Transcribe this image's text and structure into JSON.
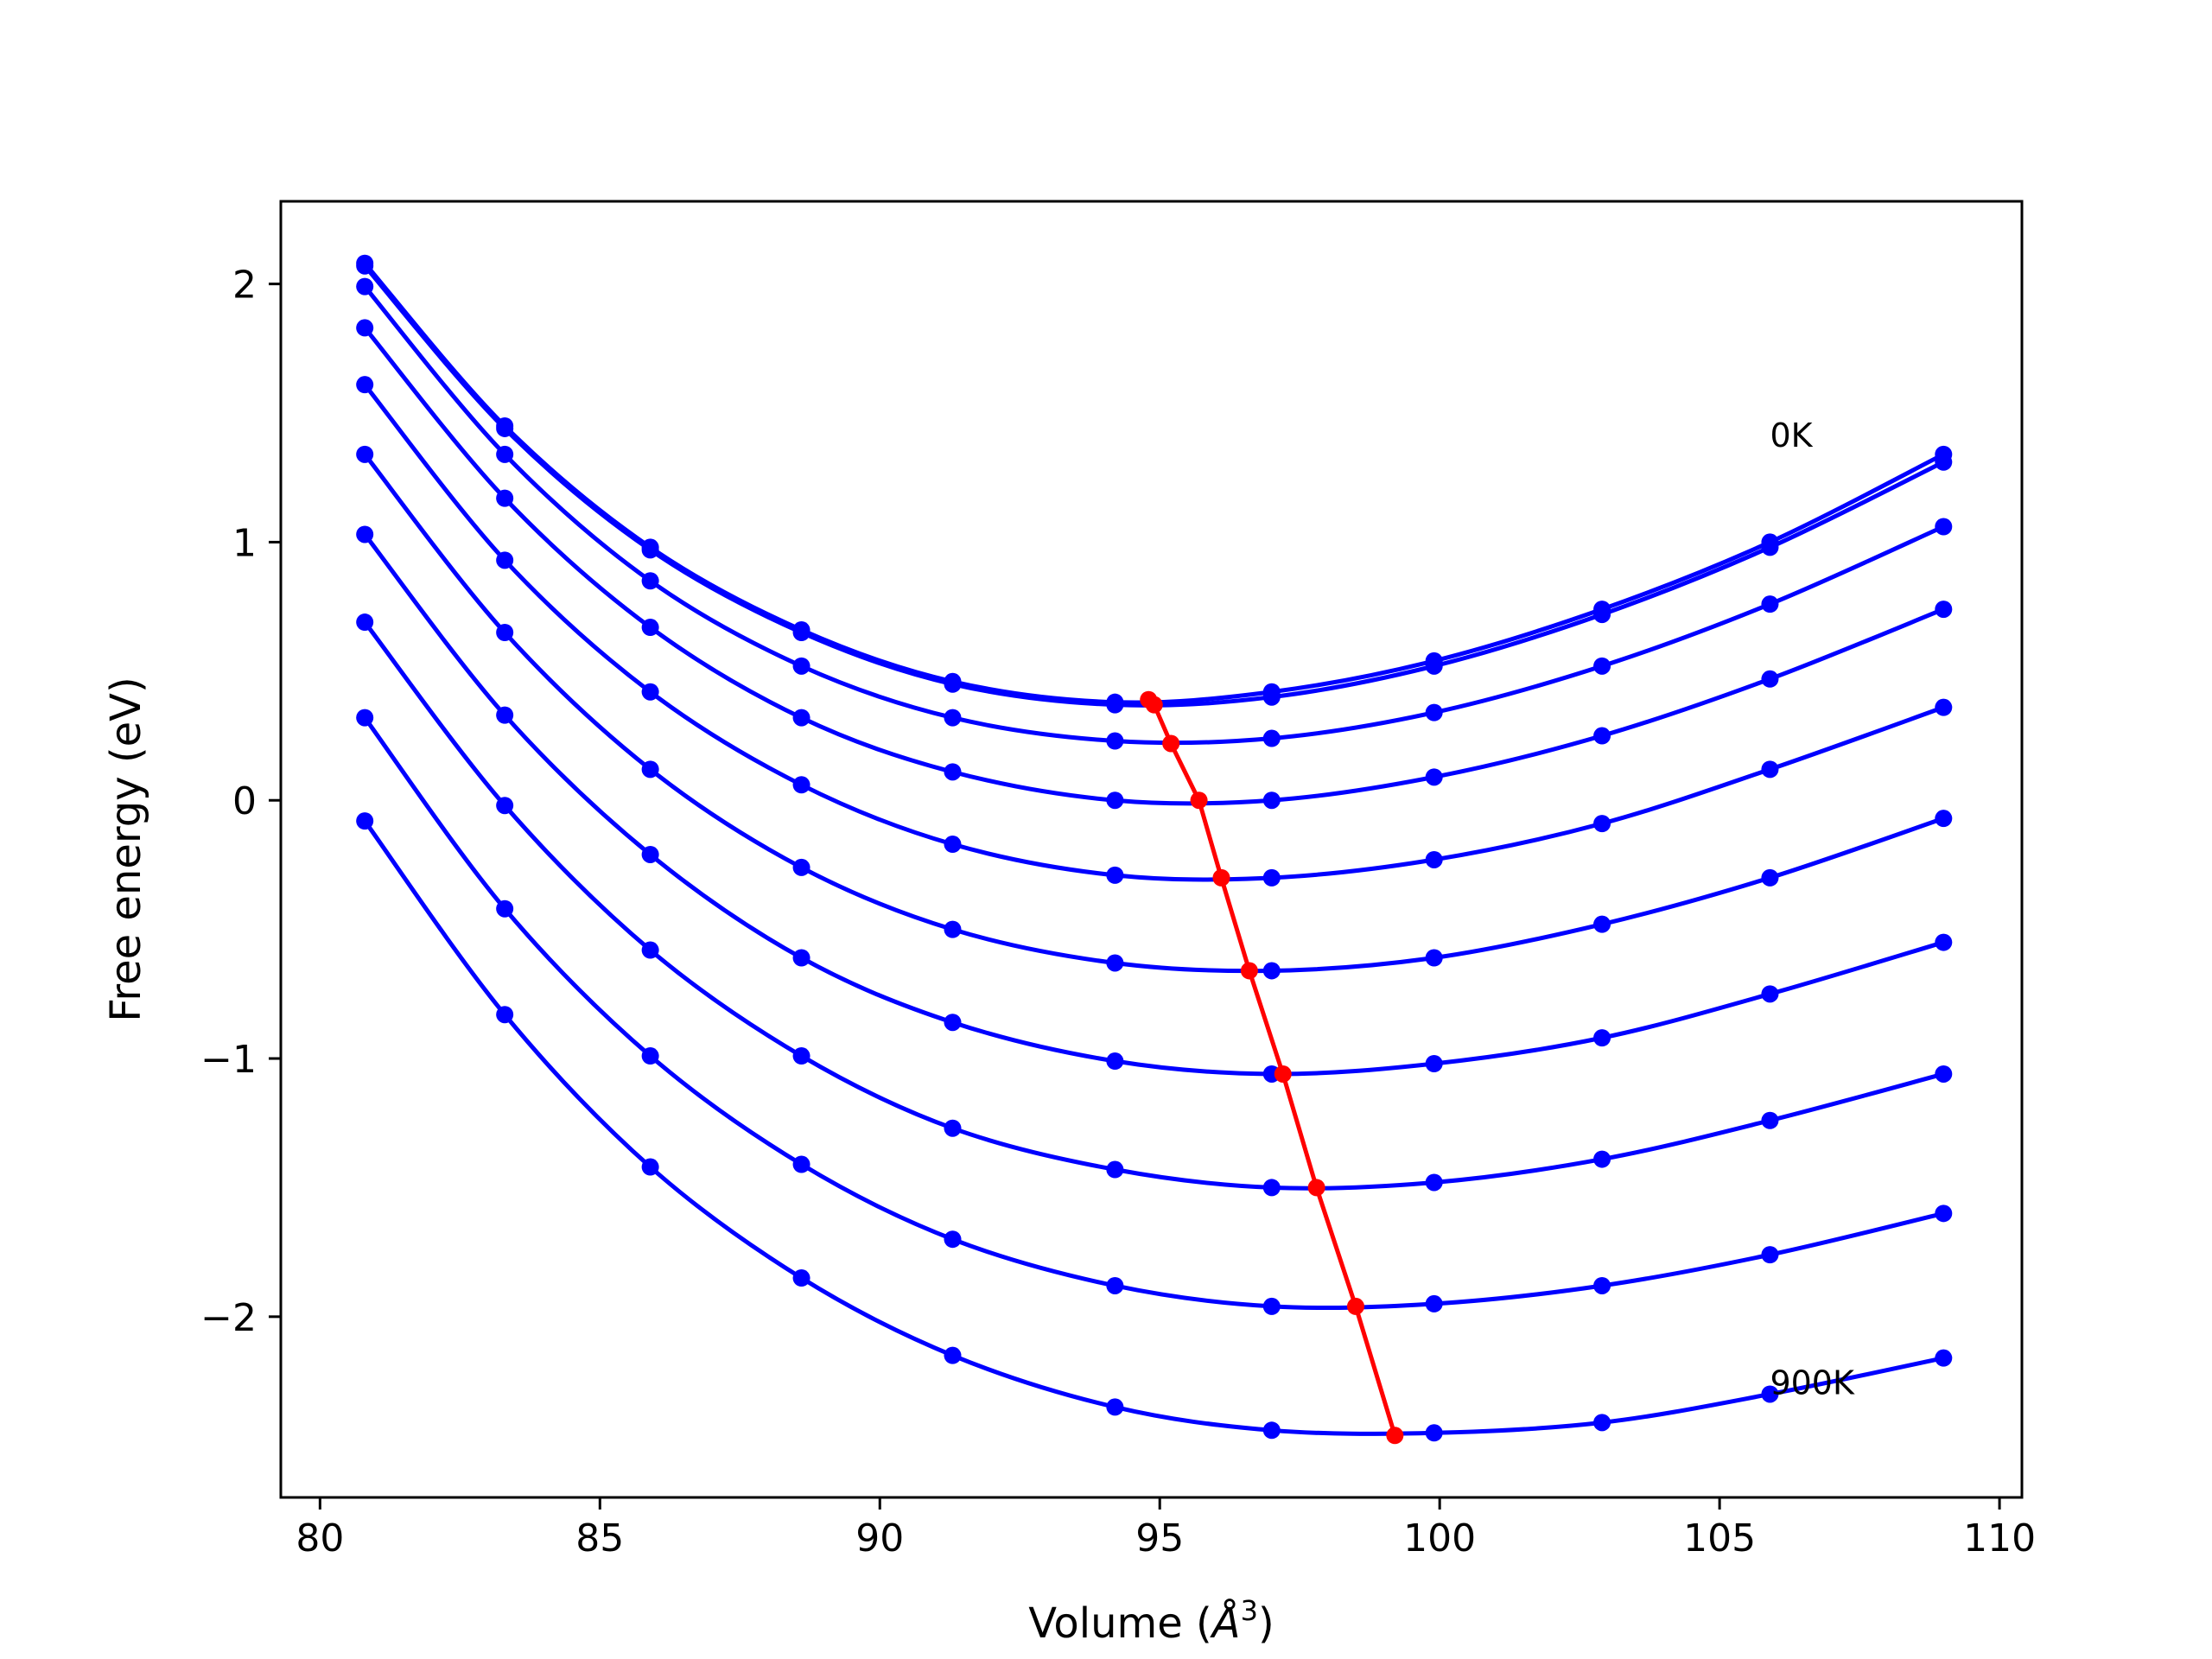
{
  "chart_data": {
    "type": "line",
    "title": "",
    "xlabel": "Volume (",
    "xlabel_symbol": "Å",
    "xlabel_exp": "3",
    "xlabel_close": ")",
    "ylabel": "Free energy (eV)",
    "xlim": [
      79.3,
      110.4
    ],
    "ylim": [
      -2.7,
      2.32
    ],
    "xticks": [
      80,
      85,
      90,
      95,
      100,
      105,
      110
    ],
    "xtick_labels": [
      "80",
      "85",
      "90",
      "95",
      "100",
      "105",
      "110"
    ],
    "yticks": [
      -2,
      -1,
      0,
      1,
      2
    ],
    "ytick_labels": [
      "−2",
      "−1",
      "0",
      "1",
      "2"
    ],
    "grid": false,
    "legend": "none",
    "annotations": [
      {
        "text": "0K",
        "x": 105.9,
        "y": 1.37
      },
      {
        "text": "900K",
        "x": 105.9,
        "y": -2.3
      }
    ],
    "x": [
      80.8,
      83.3,
      85.9,
      88.6,
      91.3,
      94.2,
      97.0,
      99.9,
      102.9,
      105.9,
      109.0
    ],
    "series": [
      {
        "y": [
          2.08,
          1.45,
          0.98,
          0.66,
          0.46,
          0.38,
          0.42,
          0.54,
          0.74,
          1.0,
          1.34
        ]
      },
      {
        "y": [
          2.07,
          1.44,
          0.97,
          0.65,
          0.45,
          0.37,
          0.4,
          0.52,
          0.72,
          0.98,
          1.31
        ]
      },
      {
        "y": [
          1.99,
          1.34,
          0.85,
          0.52,
          0.32,
          0.23,
          0.24,
          0.34,
          0.52,
          0.76,
          1.06
        ]
      },
      {
        "y": [
          1.83,
          1.17,
          0.67,
          0.32,
          0.11,
          0.0,
          0.0,
          0.09,
          0.25,
          0.47,
          0.74
        ]
      },
      {
        "y": [
          1.61,
          0.93,
          0.42,
          0.06,
          -0.17,
          -0.29,
          -0.3,
          -0.23,
          -0.09,
          0.12,
          0.36
        ]
      },
      {
        "y": [
          1.34,
          0.65,
          0.12,
          -0.26,
          -0.5,
          -0.63,
          -0.66,
          -0.61,
          -0.48,
          -0.3,
          -0.07
        ]
      },
      {
        "y": [
          1.03,
          0.33,
          -0.21,
          -0.61,
          -0.86,
          -1.01,
          -1.06,
          -1.02,
          -0.92,
          -0.75,
          -0.55
        ]
      },
      {
        "y": [
          0.69,
          -0.02,
          -0.58,
          -0.99,
          -1.27,
          -1.43,
          -1.5,
          -1.48,
          -1.39,
          -1.24,
          -1.06
        ]
      },
      {
        "y": [
          0.32,
          -0.42,
          -0.99,
          -1.41,
          -1.7,
          -1.88,
          -1.96,
          -1.95,
          -1.88,
          -1.76,
          -1.6
        ]
      },
      {
        "y": [
          -0.08,
          -0.83,
          -1.42,
          -1.85,
          -2.15,
          -2.35,
          -2.44,
          -2.45,
          -2.41,
          -2.3,
          -2.16
        ]
      }
    ],
    "minimum_path": {
      "x": [
        94.8,
        94.9,
        95.2,
        95.7,
        96.1,
        96.6,
        97.2,
        97.8,
        98.5,
        99.2
      ],
      "y": [
        0.39,
        0.37,
        0.22,
        0.0,
        -0.3,
        -0.66,
        -1.06,
        -1.5,
        -1.96,
        -2.46
      ]
    },
    "colors": {
      "curves": "#0000ff",
      "minimum_path": "#ff0000",
      "axes": "#000000"
    }
  }
}
